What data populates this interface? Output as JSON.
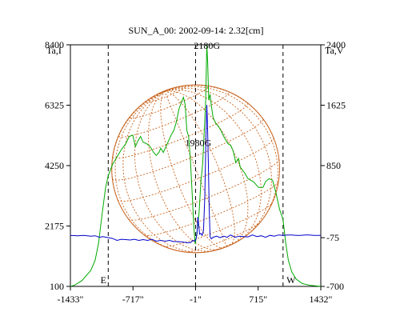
{
  "chart_data": {
    "type": "line",
    "title": "SUN_A_00: 2002-09-14: 2.32[cm]",
    "ylabel_left": "Ta,I",
    "ylabel_right": "Ta,V",
    "x_ticks": [
      "-1433\"",
      "-717\"",
      "-1\"",
      "715\"",
      "1432\""
    ],
    "x_tick_values": [
      -1433,
      -717,
      -1,
      715,
      1432
    ],
    "xlim": [
      -1433,
      1432
    ],
    "y_left_ticks": [
      "100",
      "2175",
      "4250",
      "6325",
      "8400"
    ],
    "y_left_values": [
      100,
      2175,
      4250,
      6325,
      8400
    ],
    "ylim_left": [
      100,
      8400
    ],
    "y_right_ticks": [
      "-700",
      "-75",
      "850",
      "1625",
      "2400"
    ],
    "y_right_values": [
      -700,
      -75,
      850,
      1625,
      2400
    ],
    "ylim_right": [
      -700,
      2400
    ],
    "vertical_markers": [
      {
        "x": -1000,
        "label": "E"
      },
      {
        "x": -1,
        "label": ""
      },
      {
        "x": 1000,
        "label": "W"
      }
    ],
    "annotations": [
      {
        "text": "2180G",
        "x": 130,
        "y": 2350
      },
      {
        "text": "1980G",
        "x": 30,
        "y": 1100
      }
    ],
    "sun_disk": {
      "center_x": 0,
      "radius": 960
    },
    "series": [
      {
        "axis": "left",
        "color": "#00aa00",
        "points": [
          [
            -1433,
            100
          ],
          [
            -1380,
            150
          ],
          [
            -1300,
            300
          ],
          [
            -1200,
            650
          ],
          [
            -1150,
            1000
          ],
          [
            -1110,
            1600
          ],
          [
            -1070,
            2600
          ],
          [
            -1030,
            3500
          ],
          [
            -1000,
            3900
          ],
          [
            -950,
            4300
          ],
          [
            -900,
            4550
          ],
          [
            -850,
            4800
          ],
          [
            -800,
            5000
          ],
          [
            -760,
            5250
          ],
          [
            -720,
            5300
          ],
          [
            -690,
            4900
          ],
          [
            -660,
            5100
          ],
          [
            -630,
            5250
          ],
          [
            -600,
            5050
          ],
          [
            -560,
            5000
          ],
          [
            -520,
            4900
          ],
          [
            -480,
            4700
          ],
          [
            -450,
            4600
          ],
          [
            -420,
            4700
          ],
          [
            -400,
            4850
          ],
          [
            -370,
            4700
          ],
          [
            -340,
            4900
          ],
          [
            -310,
            5100
          ],
          [
            -280,
            5300
          ],
          [
            -250,
            5450
          ],
          [
            -220,
            5750
          ],
          [
            -190,
            6200
          ],
          [
            -160,
            6450
          ],
          [
            -140,
            6600
          ],
          [
            -120,
            6350
          ],
          [
            -100,
            5450
          ],
          [
            -80,
            5250
          ],
          [
            -60,
            4450
          ],
          [
            -40,
            3300
          ],
          [
            -20,
            2100
          ],
          [
            -5,
            1550
          ],
          [
            15,
            1950
          ],
          [
            40,
            2650
          ],
          [
            60,
            3700
          ],
          [
            80,
            4300
          ],
          [
            100,
            5500
          ],
          [
            115,
            6500
          ],
          [
            128,
            8400
          ],
          [
            138,
            7800
          ],
          [
            150,
            6500
          ],
          [
            165,
            6700
          ],
          [
            180,
            6300
          ],
          [
            200,
            5900
          ],
          [
            230,
            5700
          ],
          [
            260,
            5600
          ],
          [
            290,
            5450
          ],
          [
            330,
            5200
          ],
          [
            370,
            5000
          ],
          [
            400,
            4950
          ],
          [
            430,
            4750
          ],
          [
            460,
            4350
          ],
          [
            490,
            4500
          ],
          [
            510,
            4200
          ],
          [
            560,
            4000
          ],
          [
            600,
            3800
          ],
          [
            660,
            3700
          ],
          [
            720,
            3500
          ],
          [
            770,
            3500
          ],
          [
            800,
            3700
          ],
          [
            840,
            3800
          ],
          [
            880,
            3750
          ],
          [
            920,
            3300
          ],
          [
            960,
            2750
          ],
          [
            1000,
            2400
          ],
          [
            1030,
            1600
          ],
          [
            1060,
            1000
          ],
          [
            1100,
            600
          ],
          [
            1150,
            350
          ],
          [
            1220,
            200
          ],
          [
            1300,
            140
          ],
          [
            1432,
            100
          ]
        ]
      },
      {
        "axis": "right",
        "color": "#0000cc",
        "points": [
          [
            -1433,
            -45
          ],
          [
            -1350,
            -50
          ],
          [
            -1280,
            -45
          ],
          [
            -1200,
            -55
          ],
          [
            -1150,
            -50
          ],
          [
            -1100,
            -70
          ],
          [
            -1060,
            -60
          ],
          [
            -1000,
            -75
          ],
          [
            -950,
            -85
          ],
          [
            -900,
            -110
          ],
          [
            -850,
            -95
          ],
          [
            -800,
            -100
          ],
          [
            -750,
            -105
          ],
          [
            -700,
            -95
          ],
          [
            -650,
            -110
          ],
          [
            -600,
            -100
          ],
          [
            -550,
            -110
          ],
          [
            -500,
            -95
          ],
          [
            -450,
            -120
          ],
          [
            -400,
            -110
          ],
          [
            -350,
            -120
          ],
          [
            -300,
            -110
          ],
          [
            -250,
            -125
          ],
          [
            -200,
            -125
          ],
          [
            -150,
            -130
          ],
          [
            -100,
            -140
          ],
          [
            -60,
            -140
          ],
          [
            -30,
            -110
          ],
          [
            -10,
            -120
          ],
          [
            5,
            -90
          ],
          [
            15,
            -30
          ],
          [
            25,
            190
          ],
          [
            35,
            90
          ],
          [
            45,
            -30
          ],
          [
            60,
            -20
          ],
          [
            75,
            -45
          ],
          [
            90,
            20
          ],
          [
            105,
            450
          ],
          [
            118,
            1200
          ],
          [
            128,
            1630
          ],
          [
            135,
            1400
          ],
          [
            145,
            900
          ],
          [
            155,
            300
          ],
          [
            165,
            -60
          ],
          [
            180,
            -90
          ],
          [
            200,
            -70
          ],
          [
            240,
            -55
          ],
          [
            280,
            -75
          ],
          [
            320,
            -55
          ],
          [
            360,
            -70
          ],
          [
            400,
            -40
          ],
          [
            450,
            -70
          ],
          [
            500,
            -55
          ],
          [
            550,
            -60
          ],
          [
            600,
            -65
          ],
          [
            650,
            -40
          ],
          [
            700,
            -60
          ],
          [
            750,
            -50
          ],
          [
            800,
            -70
          ],
          [
            850,
            -45
          ],
          [
            900,
            -55
          ],
          [
            950,
            -40
          ],
          [
            1000,
            -45
          ],
          [
            1050,
            -40
          ],
          [
            1100,
            -40
          ],
          [
            1150,
            -45
          ],
          [
            1200,
            -45
          ],
          [
            1250,
            -40
          ],
          [
            1300,
            -40
          ],
          [
            1350,
            -45
          ],
          [
            1432,
            -45
          ]
        ]
      }
    ],
    "grid": false,
    "legend": "none"
  }
}
